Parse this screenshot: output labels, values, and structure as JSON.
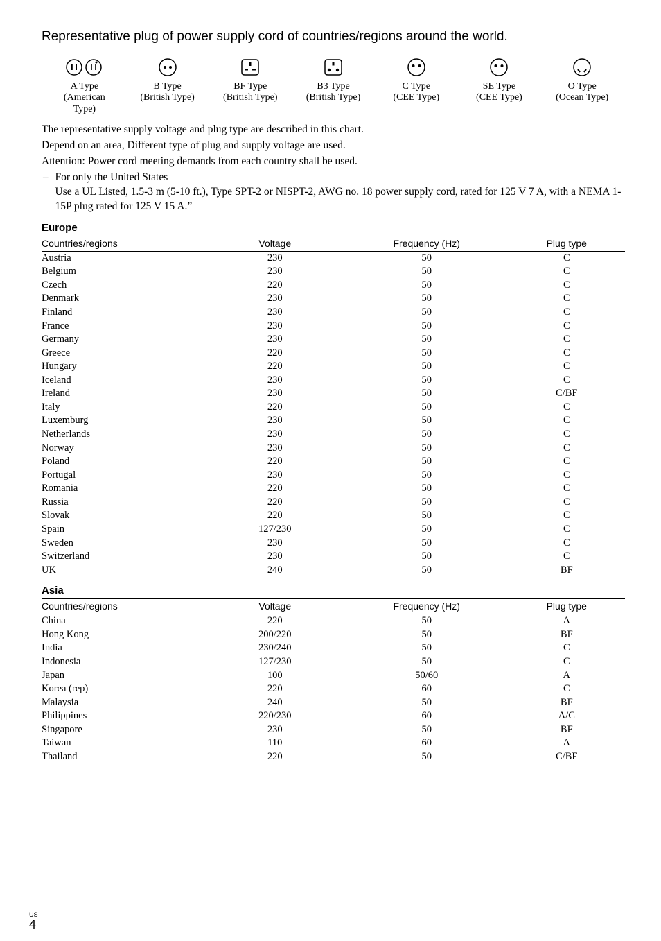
{
  "heading": "Representative plug of power supply cord of countries/regions around the world.",
  "plugs": [
    {
      "label1": "A Type",
      "label2": "(American",
      "label3": "Type)"
    },
    {
      "label1": "B Type",
      "label2": "(British Type)",
      "label3": ""
    },
    {
      "label1": "BF Type",
      "label2": "(British Type)",
      "label3": ""
    },
    {
      "label1": "B3 Type",
      "label2": "(British Type)",
      "label3": ""
    },
    {
      "label1": "C Type",
      "label2": "(CEE Type)",
      "label3": ""
    },
    {
      "label1": "SE Type",
      "label2": "(CEE Type)",
      "label3": ""
    },
    {
      "label1": "O Type",
      "label2": "(Ocean Type)",
      "label3": ""
    }
  ],
  "para1": "The representative supply voltage and plug type are described in this chart.",
  "para2": "Depend on an area, Different type of plug and supply voltage are used.",
  "para3": "Attention: Power cord meeting demands from each country shall be used.",
  "bullet1": "For only the United States",
  "bullet2": "Use a UL Listed, 1.5-3 m (5-10 ft.), Type SPT-2 or NISPT-2, AWG no. 18 power supply cord, rated for 125 V 7 A, with a NEMA 1-15P plug rated for 125 V 15 A.”",
  "sections": [
    {
      "title": "Europe",
      "headers": [
        "Countries/regions",
        "Voltage",
        "Frequency (Hz)",
        "Plug type"
      ],
      "rows": [
        [
          "Austria",
          "230",
          "50",
          "C"
        ],
        [
          "Belgium",
          "230",
          "50",
          "C"
        ],
        [
          "Czech",
          "220",
          "50",
          "C"
        ],
        [
          "Denmark",
          "230",
          "50",
          "C"
        ],
        [
          "Finland",
          "230",
          "50",
          "C"
        ],
        [
          "France",
          "230",
          "50",
          "C"
        ],
        [
          "Germany",
          "230",
          "50",
          "C"
        ],
        [
          "Greece",
          "220",
          "50",
          "C"
        ],
        [
          "Hungary",
          "220",
          "50",
          "C"
        ],
        [
          "Iceland",
          "230",
          "50",
          "C"
        ],
        [
          "Ireland",
          "230",
          "50",
          "C/BF"
        ],
        [
          "Italy",
          "220",
          "50",
          "C"
        ],
        [
          "Luxemburg",
          "230",
          "50",
          "C"
        ],
        [
          "Netherlands",
          "230",
          "50",
          "C"
        ],
        [
          "Norway",
          "230",
          "50",
          "C"
        ],
        [
          "Poland",
          "220",
          "50",
          "C"
        ],
        [
          "Portugal",
          "230",
          "50",
          "C"
        ],
        [
          "Romania",
          "220",
          "50",
          "C"
        ],
        [
          "Russia",
          "220",
          "50",
          "C"
        ],
        [
          "Slovak",
          "220",
          "50",
          "C"
        ],
        [
          "Spain",
          "127/230",
          "50",
          "C"
        ],
        [
          "Sweden",
          "230",
          "50",
          "C"
        ],
        [
          "Switzerland",
          "230",
          "50",
          "C"
        ],
        [
          "UK",
          "240",
          "50",
          "BF"
        ]
      ]
    },
    {
      "title": "Asia",
      "headers": [
        "Countries/regions",
        "Voltage",
        "Frequency (Hz)",
        "Plug type"
      ],
      "rows": [
        [
          "China",
          "220",
          "50",
          "A"
        ],
        [
          "Hong Kong",
          "200/220",
          "50",
          "BF"
        ],
        [
          "India",
          "230/240",
          "50",
          "C"
        ],
        [
          "Indonesia",
          "127/230",
          "50",
          "C"
        ],
        [
          "Japan",
          "100",
          "50/60",
          "A"
        ],
        [
          "Korea (rep)",
          "220",
          "60",
          "C"
        ],
        [
          "Malaysia",
          "240",
          "50",
          "BF"
        ],
        [
          "Philippines",
          "220/230",
          "60",
          "A/C"
        ],
        [
          "Singapore",
          "230",
          "50",
          "BF"
        ],
        [
          "Taiwan",
          "110",
          "60",
          "A"
        ],
        [
          "Thailand",
          "220",
          "50",
          "C/BF"
        ]
      ]
    }
  ],
  "pageUS": "US",
  "pageNum": "4"
}
